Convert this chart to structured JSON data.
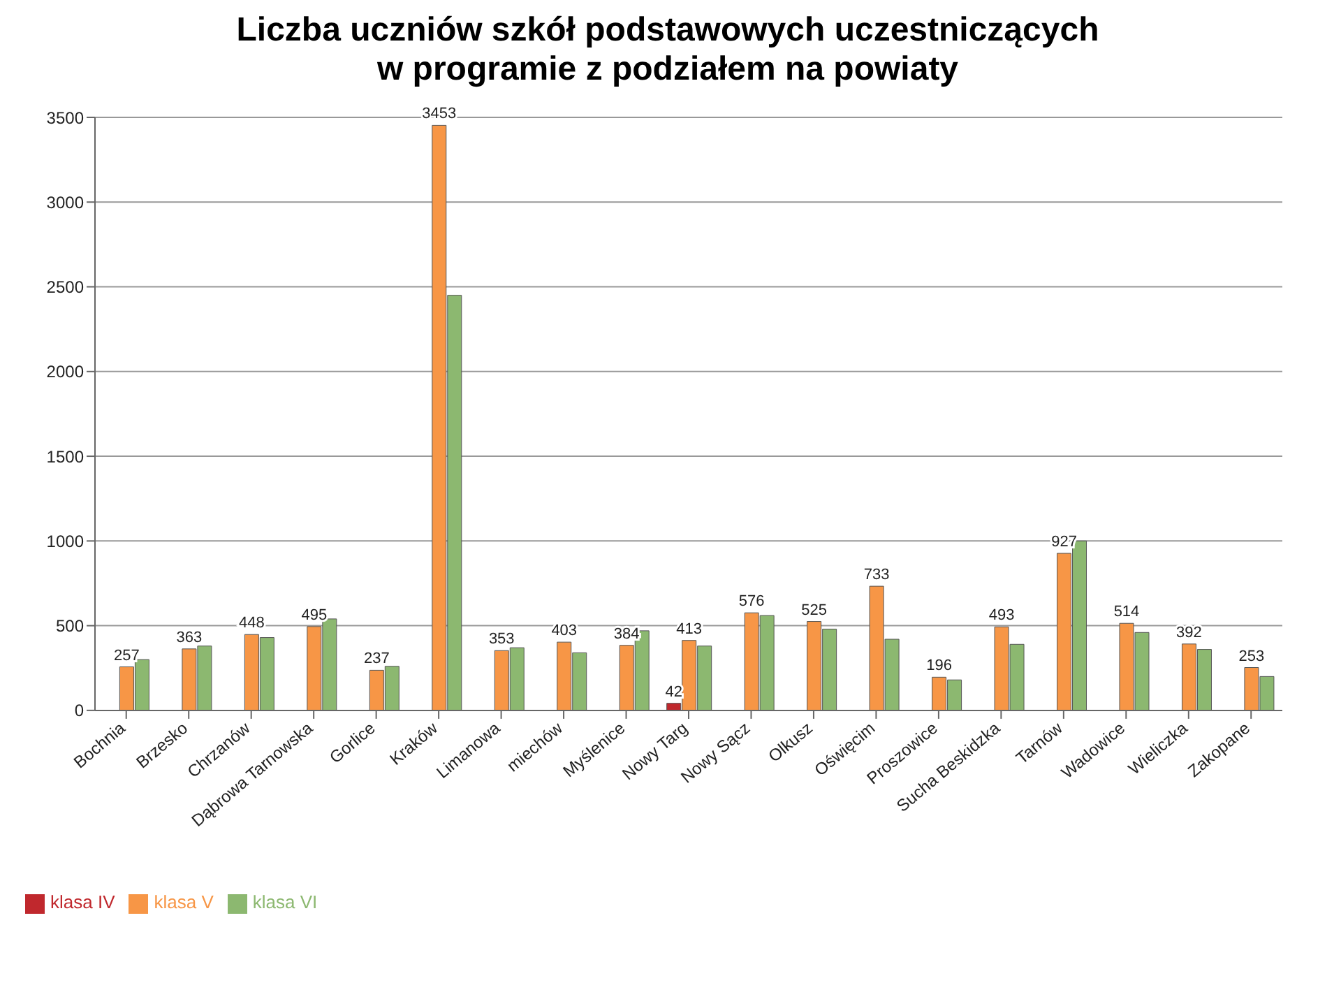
{
  "chart_data": {
    "type": "bar",
    "title": "Liczba uczniów szkół podstawowych uczestniczących\nw programie  z podziałem na powiaty",
    "categories": [
      "Bochnia",
      "Brzesko",
      "Chrzanów",
      "Dąbrowa Tarnowska",
      "Gorlice",
      "Kraków",
      "Limanowa",
      "miechów",
      "Myślenice",
      "Nowy Targ",
      "Nowy Sącz",
      "Olkusz",
      "Oświęcim",
      "Proszowice",
      "Sucha Beskidzka",
      "Tarnów",
      "Wadowice",
      "Wieliczka",
      "Zakopane"
    ],
    "series": [
      {
        "name": "klasa IV",
        "color": "#c0282d",
        "values": [
          null,
          null,
          null,
          null,
          null,
          null,
          null,
          null,
          null,
          42,
          null,
          null,
          null,
          null,
          null,
          null,
          null,
          null,
          null
        ],
        "value_labels": [
          null,
          null,
          null,
          null,
          null,
          null,
          null,
          null,
          null,
          "42",
          null,
          null,
          null,
          null,
          null,
          null,
          null,
          null,
          null
        ]
      },
      {
        "name": "klasa V",
        "color": "#f79646",
        "values": [
          257,
          363,
          448,
          495,
          237,
          3453,
          353,
          403,
          384,
          413,
          576,
          525,
          733,
          196,
          493,
          927,
          514,
          392,
          253
        ],
        "value_labels": [
          "257",
          "363",
          "448",
          "495",
          "237",
          "3453",
          "353",
          "403",
          "384",
          "413",
          "576",
          "525",
          "733",
          "196",
          "493",
          "927",
          "514",
          "392",
          "253"
        ]
      },
      {
        "name": "klasa VI",
        "color": "#8cb870",
        "values": [
          300,
          380,
          430,
          540,
          260,
          2450,
          370,
          340,
          470,
          380,
          560,
          480,
          420,
          180,
          390,
          1000,
          460,
          360,
          200
        ]
      }
    ],
    "ylim": [
      0,
      3500
    ],
    "yticks": [
      0,
      500,
      1000,
      1500,
      2000,
      2500,
      3000,
      3500
    ],
    "grid": "y",
    "legend": "bottom left"
  }
}
